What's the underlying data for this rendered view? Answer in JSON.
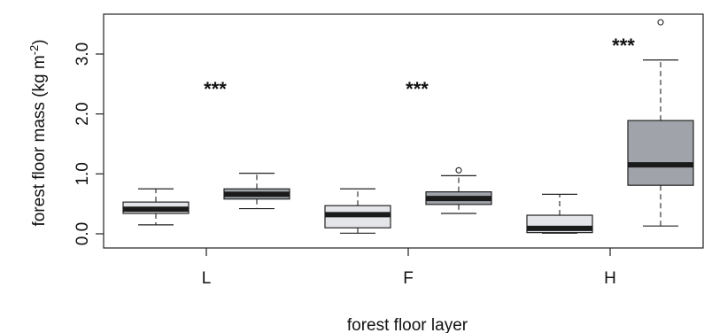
{
  "chart_data": {
    "type": "boxplot",
    "title": "",
    "xlabel": "forest floor layer",
    "ylabel": "forest floor mass (kg m",
    "ylabel_superscript": "-2",
    "ylabel_suffix": ")",
    "ylim": [
      -0.2,
      3.6
    ],
    "yticks": [
      0.0,
      1.0,
      2.0,
      3.0
    ],
    "ytick_labels": [
      "0.0",
      "1.0",
      "2.0",
      "3.0"
    ],
    "categories": [
      "L",
      "F",
      "H"
    ],
    "significance": [
      "***",
      "***",
      "***"
    ],
    "series": [
      {
        "color": "#e3e5e8",
        "boxes": [
          {
            "category": "L",
            "whisker_low": 0.15,
            "q1": 0.34,
            "median": 0.41,
            "q3": 0.53,
            "whisker_high": 0.75,
            "outliers": []
          },
          {
            "category": "F",
            "whisker_low": 0.01,
            "q1": 0.1,
            "median": 0.32,
            "q3": 0.47,
            "whisker_high": 0.75,
            "outliers": []
          },
          {
            "category": "H",
            "whisker_low": 0.01,
            "q1": 0.02,
            "median": 0.09,
            "q3": 0.31,
            "whisker_high": 0.66,
            "outliers": []
          }
        ]
      },
      {
        "color": "#a0a4aa",
        "boxes": [
          {
            "category": "L",
            "whisker_low": 0.42,
            "q1": 0.58,
            "median": 0.66,
            "q3": 0.75,
            "whisker_high": 1.01,
            "outliers": []
          },
          {
            "category": "F",
            "whisker_low": 0.34,
            "q1": 0.49,
            "median": 0.59,
            "q3": 0.7,
            "whisker_high": 0.97,
            "outliers": [
              1.06
            ]
          },
          {
            "category": "H",
            "whisker_low": 0.13,
            "q1": 0.81,
            "median": 1.15,
            "q3": 1.89,
            "whisker_high": 2.9,
            "outliers": [
              3.53
            ]
          }
        ]
      }
    ]
  }
}
